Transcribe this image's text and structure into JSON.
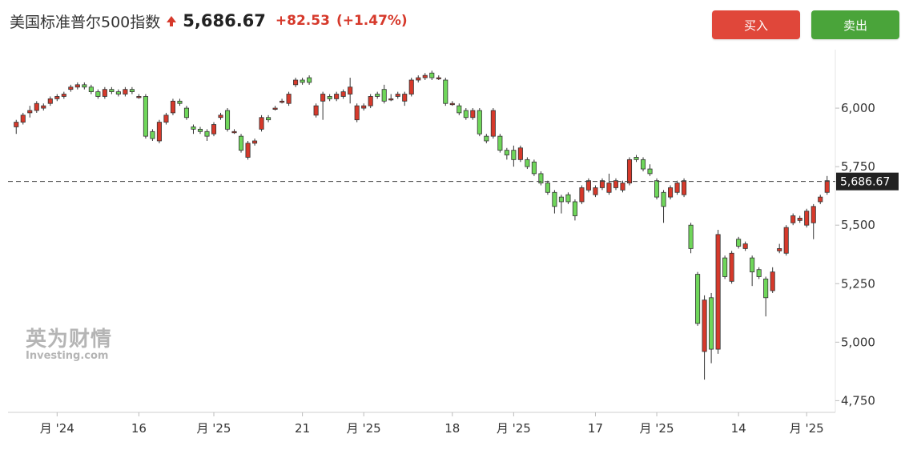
{
  "header": {
    "title": "美国标准普尔500指数",
    "price": "5,686.67",
    "change": "+82.53",
    "change_pct": "(+1.47%)",
    "trend_icon": "arrow-up-icon"
  },
  "buttons": {
    "buy": "买入",
    "sell": "卖出"
  },
  "watermark": {
    "cn": "英为财情",
    "en": "Investing.com"
  },
  "colors": {
    "up": "#d6392b",
    "down": "#6fd65a",
    "accent_buy": "#e0473a",
    "accent_sell": "#4aa43a"
  },
  "chart_data": {
    "type": "candlestick",
    "current_price_label": "5,686.67",
    "current_price": 5686.67,
    "ylim": [
      4700,
      6250
    ],
    "yticks": [
      {
        "value": 6000,
        "label": "6,000"
      },
      {
        "value": 5750,
        "label": "5,750"
      },
      {
        "value": 5500,
        "label": "5,500"
      },
      {
        "value": 5250,
        "label": "5,250"
      },
      {
        "value": 5000,
        "label": "5,000"
      },
      {
        "value": 4750,
        "label": "4,750"
      }
    ],
    "xticks": [
      "月 '24",
      "16",
      "月 '25",
      "21",
      "月 '25",
      "18",
      "月 '25",
      "17",
      "月 '25",
      "14",
      "月 '25"
    ],
    "xtick_index": [
      6,
      18,
      29,
      42,
      51,
      64,
      73,
      85,
      94,
      106,
      116
    ],
    "candles": [
      [
        5920,
        5940,
        5890,
        5950
      ],
      [
        5940,
        5970,
        5930,
        5980
      ],
      [
        5980,
        5990,
        5960,
        6010
      ],
      [
        5990,
        6020,
        5980,
        6030
      ],
      [
        6000,
        6010,
        5990,
        6020
      ],
      [
        6020,
        6040,
        6010,
        6050
      ],
      [
        6040,
        6050,
        6030,
        6060
      ],
      [
        6050,
        6060,
        6040,
        6070
      ],
      [
        6080,
        6090,
        6070,
        6100
      ],
      [
        6090,
        6100,
        6080,
        6110
      ],
      [
        6100,
        6090,
        6080,
        6110
      ],
      [
        6090,
        6070,
        6060,
        6100
      ],
      [
        6070,
        6050,
        6040,
        6080
      ],
      [
        6050,
        6080,
        6040,
        6090
      ],
      [
        6080,
        6070,
        6060,
        6090
      ],
      [
        6070,
        6060,
        6050,
        6080
      ],
      [
        6060,
        6080,
        6050,
        6090
      ],
      [
        6080,
        6070,
        6060,
        6090
      ],
      [
        6050,
        6050,
        6040,
        6060
      ],
      [
        6050,
        5880,
        5870,
        6060
      ],
      [
        5900,
        5870,
        5860,
        5910
      ],
      [
        5860,
        5940,
        5850,
        5950
      ],
      [
        5940,
        5970,
        5930,
        5980
      ],
      [
        5980,
        6030,
        5970,
        6040
      ],
      [
        6030,
        6020,
        6010,
        6040
      ],
      [
        6000,
        5960,
        5950,
        6010
      ],
      [
        5920,
        5910,
        5890,
        5930
      ],
      [
        5910,
        5900,
        5890,
        5920
      ],
      [
        5900,
        5880,
        5860,
        5910
      ],
      [
        5890,
        5930,
        5880,
        5940
      ],
      [
        5960,
        5970,
        5950,
        5980
      ],
      [
        5990,
        5910,
        5900,
        6000
      ],
      [
        5900,
        5900,
        5890,
        5910
      ],
      [
        5880,
        5820,
        5810,
        5890
      ],
      [
        5790,
        5850,
        5780,
        5860
      ],
      [
        5850,
        5860,
        5840,
        5870
      ],
      [
        5910,
        5960,
        5900,
        5970
      ],
      [
        5960,
        5950,
        5940,
        5970
      ],
      [
        6000,
        6000,
        5990,
        6010
      ],
      [
        6030,
        6030,
        6020,
        6040
      ],
      [
        6020,
        6060,
        6010,
        6070
      ],
      [
        6100,
        6120,
        6090,
        6130
      ],
      [
        6120,
        6110,
        6100,
        6130
      ],
      [
        6130,
        6110,
        6100,
        6140
      ],
      [
        5970,
        6010,
        5960,
        6020
      ],
      [
        6030,
        6060,
        5950,
        6070
      ],
      [
        6050,
        6040,
        6030,
        6060
      ],
      [
        6040,
        6060,
        6030,
        6070
      ],
      [
        6050,
        6070,
        6040,
        6080
      ],
      [
        6060,
        6090,
        6020,
        6130
      ],
      [
        5950,
        6010,
        5940,
        6020
      ],
      [
        6000,
        6010,
        5990,
        6020
      ],
      [
        6010,
        6050,
        6000,
        6060
      ],
      [
        6060,
        6050,
        6040,
        6070
      ],
      [
        6080,
        6030,
        6020,
        6100
      ],
      [
        6040,
        6040,
        6030,
        6060
      ],
      [
        6050,
        6060,
        6040,
        6070
      ],
      [
        6030,
        6060,
        6010,
        6070
      ],
      [
        6060,
        6120,
        6050,
        6130
      ],
      [
        6120,
        6130,
        6110,
        6140
      ],
      [
        6130,
        6140,
        6120,
        6150
      ],
      [
        6150,
        6130,
        6120,
        6160
      ],
      [
        6130,
        6130,
        6120,
        6140
      ],
      [
        6120,
        6020,
        6010,
        6130
      ],
      [
        6020,
        6020,
        6010,
        6030
      ],
      [
        6010,
        5980,
        5970,
        6020
      ],
      [
        5990,
        5960,
        5950,
        6000
      ],
      [
        5960,
        5990,
        5950,
        6000
      ],
      [
        5990,
        5890,
        5880,
        6000
      ],
      [
        5880,
        5860,
        5850,
        5890
      ],
      [
        5880,
        5990,
        5870,
        6000
      ],
      [
        5880,
        5820,
        5810,
        5890
      ],
      [
        5820,
        5800,
        5780,
        5830
      ],
      [
        5820,
        5780,
        5750,
        5840
      ],
      [
        5780,
        5830,
        5770,
        5840
      ],
      [
        5780,
        5750,
        5740,
        5790
      ],
      [
        5770,
        5720,
        5710,
        5780
      ],
      [
        5720,
        5680,
        5670,
        5730
      ],
      [
        5680,
        5640,
        5630,
        5690
      ],
      [
        5640,
        5580,
        5550,
        5650
      ],
      [
        5620,
        5600,
        5550,
        5630
      ],
      [
        5630,
        5600,
        5590,
        5640
      ],
      [
        5600,
        5540,
        5520,
        5610
      ],
      [
        5600,
        5660,
        5590,
        5670
      ],
      [
        5650,
        5690,
        5640,
        5700
      ],
      [
        5630,
        5660,
        5620,
        5670
      ],
      [
        5660,
        5690,
        5650,
        5700
      ],
      [
        5640,
        5680,
        5630,
        5720
      ],
      [
        5660,
        5690,
        5650,
        5700
      ],
      [
        5650,
        5680,
        5640,
        5690
      ],
      [
        5680,
        5780,
        5670,
        5790
      ],
      [
        5790,
        5780,
        5770,
        5800
      ],
      [
        5780,
        5740,
        5730,
        5790
      ],
      [
        5740,
        5720,
        5710,
        5760
      ],
      [
        5690,
        5620,
        5610,
        5700
      ],
      [
        5640,
        5580,
        5510,
        5650
      ],
      [
        5620,
        5660,
        5610,
        5670
      ],
      [
        5640,
        5680,
        5630,
        5690
      ],
      [
        5630,
        5690,
        5620,
        5700
      ],
      [
        5500,
        5400,
        5380,
        5510
      ],
      [
        5290,
        5080,
        5070,
        5300
      ],
      [
        4960,
        5180,
        4840,
        5200
      ],
      [
        5190,
        4970,
        4910,
        5210
      ],
      [
        4970,
        5460,
        4950,
        5480
      ],
      [
        5360,
        5280,
        5270,
        5370
      ],
      [
        5260,
        5380,
        5250,
        5390
      ],
      [
        5440,
        5410,
        5400,
        5450
      ],
      [
        5400,
        5420,
        5390,
        5430
      ],
      [
        5360,
        5300,
        5240,
        5370
      ],
      [
        5310,
        5280,
        5270,
        5320
      ],
      [
        5270,
        5190,
        5110,
        5280
      ],
      [
        5220,
        5300,
        5210,
        5320
      ],
      [
        5390,
        5400,
        5380,
        5420
      ],
      [
        5380,
        5490,
        5370,
        5500
      ],
      [
        5510,
        5540,
        5500,
        5550
      ],
      [
        5520,
        5530,
        5510,
        5540
      ],
      [
        5500,
        5560,
        5490,
        5570
      ],
      [
        5510,
        5580,
        5440,
        5590
      ],
      [
        5600,
        5620,
        5590,
        5630
      ],
      [
        5640,
        5690,
        5630,
        5710
      ]
    ]
  }
}
